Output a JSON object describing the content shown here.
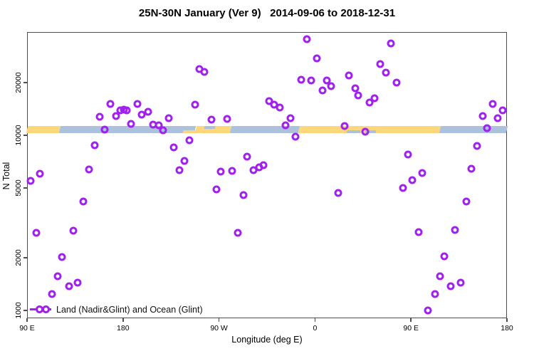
{
  "title": "25N-30N January (Ver 9)   2014-09-06 to 2018-12-31",
  "chart_data": {
    "type": "scatter",
    "title": "25N-30N January (Ver 9)   2014-09-06 to 2018-12-31",
    "xlabel": "Longitude (deg E)",
    "ylabel": "N Total",
    "grid": false,
    "point_color": "#A020F0",
    "x_axis": {
      "min": 90,
      "max": 540,
      "ticks": [
        {
          "value": 90,
          "label": "90 E"
        },
        {
          "value": 180,
          "label": "180"
        },
        {
          "value": 270,
          "label": "90 W"
        },
        {
          "value": 360,
          "label": "0"
        },
        {
          "value": 450,
          "label": "90 E"
        },
        {
          "value": 540,
          "label": "180"
        }
      ]
    },
    "y_axis": {
      "scale": "log",
      "min": 900,
      "max": 39000,
      "ticks": [
        {
          "value": 1000,
          "label": "1000"
        },
        {
          "value": 2000,
          "label": "2000"
        },
        {
          "value": 5000,
          "label": "5000"
        },
        {
          "value": 10000,
          "label": "10000"
        },
        {
          "value": 20000,
          "label": "20000"
        }
      ]
    },
    "band": {
      "description": "land/ocean strip along 25N-30N",
      "value_top": 11300,
      "value_bottom": 10300,
      "land_color": "#FCD77C",
      "ocean_color": "#ACC1DB",
      "segments": [
        {
          "type": "land",
          "from": 90,
          "to": 121
        },
        {
          "type": "ocean",
          "from": 121,
          "to": 248
        },
        {
          "type": "land",
          "from": 248,
          "to": 281
        },
        {
          "type": "ocean",
          "from": 281,
          "to": 345
        },
        {
          "type": "land",
          "from": 345,
          "to": 477
        },
        {
          "type": "ocean",
          "from": 477,
          "to": 540
        }
      ],
      "patches": [
        {
          "type": "land",
          "from": 236,
          "to": 248,
          "pos": "bottom"
        },
        {
          "type": "ocean",
          "from": 256,
          "to": 266,
          "pos": "top"
        },
        {
          "type": "ocean",
          "from": 390,
          "to": 403,
          "pos": "bottom"
        },
        {
          "type": "ocean",
          "from": 407,
          "to": 417,
          "pos": "bottom"
        }
      ]
    },
    "legend": {
      "label": "Land (Nadir&Glint) and Ocean (Glint)",
      "marker_color": "#A020F0"
    },
    "points": [
      [
        93.3,
        5490
      ],
      [
        98.7,
        2770
      ],
      [
        102,
        6030
      ],
      [
        113.4,
        1240
      ],
      [
        118.7,
        1570
      ],
      [
        122.7,
        2020
      ],
      [
        129.4,
        1370
      ],
      [
        133.4,
        2850
      ],
      [
        137.4,
        1440
      ],
      [
        142.7,
        4190
      ],
      [
        148,
        6380
      ],
      [
        153.4,
        8770
      ],
      [
        158,
        12800
      ],
      [
        162.8,
        10800
      ],
      [
        168,
        15100
      ],
      [
        173.5,
        12900
      ],
      [
        177.5,
        13900
      ],
      [
        181,
        14100
      ],
      [
        183.5,
        13900
      ],
      [
        187.5,
        11600
      ],
      [
        193.5,
        15200
      ],
      [
        197.5,
        13100
      ],
      [
        203.5,
        13600
      ],
      [
        208.2,
        11500
      ],
      [
        213.5,
        11400
      ],
      [
        217.5,
        10700
      ],
      [
        223,
        12500
      ],
      [
        227.5,
        8530
      ],
      [
        232.9,
        6320
      ],
      [
        237.6,
        7140
      ],
      [
        242.2,
        9370
      ],
      [
        247.6,
        15000
      ],
      [
        251.6,
        23900
      ],
      [
        256.3,
        23000
      ],
      [
        263,
        12300
      ],
      [
        267.6,
        4910
      ],
      [
        271.6,
        6200
      ],
      [
        277.6,
        12400
      ],
      [
        282.3,
        6260
      ],
      [
        287.6,
        2770
      ],
      [
        293,
        4560
      ],
      [
        296.3,
        7550
      ],
      [
        302.3,
        6320
      ],
      [
        307.7,
        6560
      ],
      [
        311.7,
        6750
      ],
      [
        317,
        15700
      ],
      [
        321.7,
        15000
      ],
      [
        327,
        14500
      ],
      [
        332.4,
        11400
      ],
      [
        337,
        12600
      ],
      [
        341.7,
        9810
      ],
      [
        347.1,
        20800
      ],
      [
        352.4,
        35400
      ],
      [
        356.4,
        20600
      ],
      [
        361.8,
        27500
      ],
      [
        367.1,
        18000
      ],
      [
        371.1,
        20600
      ],
      [
        375.1,
        19100
      ],
      [
        381.8,
        4680
      ],
      [
        387.8,
        11300
      ],
      [
        391.8,
        22000
      ],
      [
        397.8,
        18600
      ],
      [
        400.5,
        16900
      ],
      [
        407.1,
        10500
      ],
      [
        411.2,
        15400
      ],
      [
        415.9,
        16300
      ],
      [
        421.2,
        25500
      ],
      [
        426.5,
        22800
      ],
      [
        431.2,
        33500
      ],
      [
        436.6,
        20000
      ],
      [
        442.5,
        5000
      ],
      [
        447.2,
        7770
      ],
      [
        451.2,
        5550
      ],
      [
        457.2,
        2800
      ],
      [
        460.6,
        6090
      ],
      [
        465.9,
        1000
      ],
      [
        472.6,
        1240
      ],
      [
        477.3,
        1570
      ],
      [
        481.3,
        2040
      ],
      [
        487.3,
        1370
      ],
      [
        491.3,
        2880
      ],
      [
        496.6,
        1440
      ],
      [
        501.9,
        4190
      ],
      [
        506.6,
        6440
      ],
      [
        512,
        8690
      ],
      [
        517.3,
        12900
      ],
      [
        521.3,
        11000
      ],
      [
        526.7,
        15100
      ],
      [
        531,
        12600
      ],
      [
        536,
        13900
      ]
    ]
  }
}
